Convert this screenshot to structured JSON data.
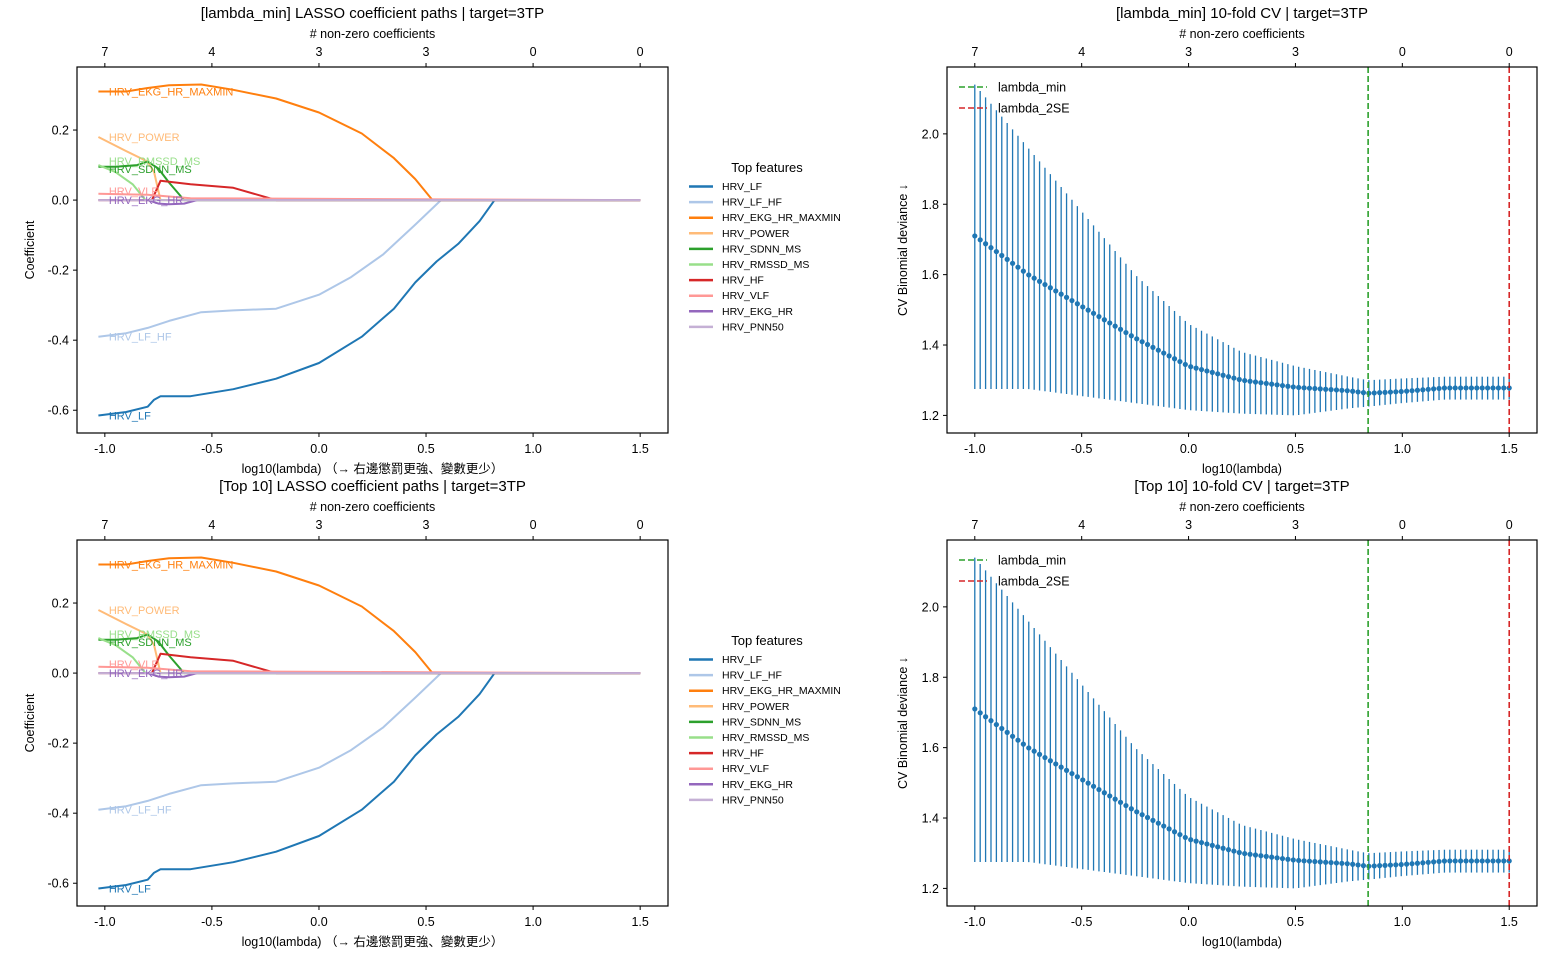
{
  "figure": {
    "panels": [
      {
        "id": "coef_min",
        "title": "[lambda_min] LASSO coefficient paths  |  target=3TP"
      },
      {
        "id": "cv_min",
        "title": "[lambda_min] 10-fold CV  |  target=3TP"
      },
      {
        "id": "coef_top",
        "title": "[Top 10] LASSO coefficient paths  |  target=3TP"
      },
      {
        "id": "cv_top",
        "title": "[Top 10] 10-fold CV  |  target=3TP"
      }
    ]
  },
  "chart_data": [
    {
      "type": "line",
      "title": "[lambda_min] LASSO coefficient paths  |  target=3TP",
      "xlabel": "log10(lambda)  （→ 右邊懲罰更強、變數更少）",
      "ylabel": "Coefficient",
      "top_xlabel": "# non-zero coefficients",
      "xlim": [
        -1.13,
        1.63
      ],
      "ylim": [
        -0.665,
        0.38
      ],
      "xticks": [
        -1.0,
        -0.5,
        0.0,
        0.5,
        1.0,
        1.5
      ],
      "xtick_labels": [
        "-1.0",
        "-0.5",
        "0.0",
        "0.5",
        "1.0",
        "1.5"
      ],
      "yticks": [
        -0.6,
        -0.4,
        -0.2,
        0.0,
        0.2
      ],
      "ytick_labels": [
        "-0.6",
        "-0.4",
        "-0.2",
        "0.0",
        "0.2"
      ],
      "top_xticks": [
        -1.0,
        -0.5,
        0.0,
        0.5,
        1.0,
        1.5
      ],
      "top_xtick_labels": [
        "7",
        "4",
        "3",
        "3",
        "0",
        "0"
      ],
      "legend": {
        "title": "Top features",
        "placement": "outside-right"
      },
      "series": [
        {
          "name": "HRV_LF",
          "color": "#1f77b4",
          "x": [
            -1.03,
            -0.9,
            -0.8,
            -0.77,
            -0.74,
            -0.6,
            -0.4,
            -0.2,
            0.0,
            0.2,
            0.35,
            0.45,
            0.55,
            0.65,
            0.75,
            0.82,
            1.5
          ],
          "y": [
            -0.615,
            -0.605,
            -0.59,
            -0.57,
            -0.56,
            -0.56,
            -0.54,
            -0.51,
            -0.465,
            -0.39,
            -0.31,
            -0.235,
            -0.175,
            -0.125,
            -0.06,
            0.0,
            0.0
          ]
        },
        {
          "name": "HRV_LF_HF",
          "color": "#aec7e8",
          "x": [
            -1.03,
            -0.9,
            -0.8,
            -0.7,
            -0.55,
            -0.4,
            -0.2,
            0.0,
            0.15,
            0.3,
            0.45,
            0.57,
            1.5
          ],
          "y": [
            -0.39,
            -0.38,
            -0.365,
            -0.345,
            -0.32,
            -0.315,
            -0.31,
            -0.27,
            -0.22,
            -0.155,
            -0.07,
            0.0,
            0.0
          ]
        },
        {
          "name": "HRV_EKG_HR_MAXMIN",
          "color": "#ff7f0e",
          "x": [
            -1.03,
            -0.9,
            -0.8,
            -0.7,
            -0.55,
            -0.4,
            -0.2,
            0.0,
            0.2,
            0.35,
            0.45,
            0.53,
            1.5
          ],
          "y": [
            0.31,
            0.31,
            0.32,
            0.328,
            0.33,
            0.315,
            0.29,
            0.25,
            0.19,
            0.12,
            0.06,
            0.0,
            0.0
          ]
        },
        {
          "name": "HRV_POWER",
          "color": "#ffbb78",
          "x": [
            -1.03,
            -0.9,
            -0.8,
            -0.77,
            -0.74,
            1.5
          ],
          "y": [
            0.18,
            0.14,
            0.11,
            0.08,
            0.0,
            0.0
          ]
        },
        {
          "name": "HRV_SDNN_MS",
          "color": "#2ca02c",
          "x": [
            -1.03,
            -0.95,
            -0.85,
            -0.8,
            -0.75,
            -0.7,
            -0.63,
            1.5
          ],
          "y": [
            0.095,
            0.095,
            0.1,
            0.11,
            0.09,
            0.05,
            0.0,
            0.0
          ]
        },
        {
          "name": "HRV_RMSSD_MS",
          "color": "#98df8a",
          "x": [
            -1.03,
            -0.95,
            -0.87,
            -0.81,
            1.5
          ],
          "y": [
            0.1,
            0.08,
            0.045,
            0.0,
            0.0
          ]
        },
        {
          "name": "HRV_HF",
          "color": "#d62728",
          "x": [
            -1.03,
            -0.78,
            -0.74,
            -0.6,
            -0.4,
            -0.2,
            1.5
          ],
          "y": [
            0.0,
            0.0,
            0.055,
            0.045,
            0.035,
            0.0,
            0.0
          ]
        },
        {
          "name": "HRV_VLF",
          "color": "#ff9896",
          "x": [
            -1.03,
            -0.8,
            -0.6,
            1.5
          ],
          "y": [
            0.018,
            0.015,
            0.005,
            0.0
          ]
        },
        {
          "name": "HRV_EKG_HR",
          "color": "#9467bd",
          "x": [
            -1.03,
            -0.8,
            -0.75,
            -0.7,
            -0.63,
            -0.57,
            1.5
          ],
          "y": [
            0.0,
            0.0,
            -0.01,
            -0.012,
            -0.01,
            0.0,
            0.0
          ]
        },
        {
          "name": "HRV_PNN50",
          "color": "#c5b0d5",
          "x": [
            -1.03,
            1.5
          ],
          "y": [
            0.0,
            0.0
          ]
        }
      ]
    },
    {
      "type": "scatter",
      "subtype": "errorbar",
      "title": "[lambda_min] 10-fold CV  |  target=3TP",
      "xlabel": "log10(lambda)",
      "ylabel": "CV Binomial deviance ↓",
      "top_xlabel": "# non-zero coefficients",
      "xlim": [
        -1.13,
        1.63
      ],
      "ylim": [
        1.15,
        2.19
      ],
      "xticks": [
        -1.0,
        -0.5,
        0.0,
        0.5,
        1.0,
        1.5
      ],
      "xtick_labels": [
        "-1.0",
        "-0.5",
        "0.0",
        "0.5",
        "1.0",
        "1.5"
      ],
      "yticks": [
        1.2,
        1.4,
        1.6,
        1.8,
        2.0
      ],
      "ytick_labels": [
        "1.2",
        "1.4",
        "1.6",
        "1.8",
        "2.0"
      ],
      "top_xticks": [
        -1.0,
        -0.5,
        0.0,
        0.5,
        1.0,
        1.5
      ],
      "top_xtick_labels": [
        "7",
        "4",
        "3",
        "3",
        "0",
        "0"
      ],
      "vlines": [
        {
          "name": "lambda_min",
          "x": 0.84,
          "color": "#2ca02c",
          "style": "dashed"
        },
        {
          "name": "lambda_2SE",
          "x": 1.5,
          "color": "#d62728",
          "style": "dashed"
        }
      ],
      "legend": {
        "placement": "top-left",
        "entries": [
          "lambda_min",
          "lambda_2SE"
        ]
      },
      "marker_color": "#1f77b4",
      "x_start": -1.0,
      "x_end": 1.5,
      "n_points": 100,
      "mean_keypoints": {
        "x": [
          -1.0,
          -0.75,
          -0.5,
          -0.25,
          0.0,
          0.25,
          0.5,
          0.75,
          0.84,
          1.0,
          1.2,
          1.5
        ],
        "y": [
          1.71,
          1.6,
          1.51,
          1.42,
          1.34,
          1.3,
          1.28,
          1.27,
          1.263,
          1.268,
          1.278,
          1.278
        ]
      },
      "upper_keypoints": {
        "x": [
          -1.0,
          -0.75,
          -0.5,
          -0.25,
          0.0,
          0.25,
          0.5,
          0.75,
          0.84,
          1.0,
          1.2,
          1.5
        ],
        "y": [
          2.14,
          1.96,
          1.78,
          1.6,
          1.46,
          1.38,
          1.34,
          1.31,
          1.3,
          1.305,
          1.31,
          1.31
        ]
      },
      "lower_keypoints": {
        "x": [
          -1.0,
          -0.75,
          -0.5,
          -0.25,
          0.0,
          0.25,
          0.5,
          0.75,
          0.84,
          1.0,
          1.2,
          1.5
        ],
        "y": [
          1.275,
          1.275,
          1.255,
          1.235,
          1.215,
          1.205,
          1.2,
          1.22,
          1.225,
          1.235,
          1.245,
          1.245
        ]
      }
    },
    {
      "type": "line",
      "title": "[Top 10] LASSO coefficient paths  |  target=3TP",
      "xlabel": "log10(lambda)  （→ 右邊懲罰更強、變數更少）",
      "ylabel": "Coefficient",
      "top_xlabel": "# non-zero coefficients",
      "same_as": "chart_data.0",
      "legend": {
        "title": "Top features",
        "placement": "outside-right"
      }
    },
    {
      "type": "scatter",
      "subtype": "errorbar",
      "title": "[Top 10] 10-fold CV  |  target=3TP",
      "xlabel": "log10(lambda)",
      "ylabel": "CV Binomial deviance ↓",
      "top_xlabel": "# non-zero coefficients",
      "same_as": "chart_data.1"
    }
  ],
  "path_labels": [
    {
      "text": "HRV_EKG_HR_MAXMIN",
      "series": "HRV_EKG_HR_MAXMIN"
    },
    {
      "text": "HRV_POWER",
      "series": "HRV_POWER"
    },
    {
      "text": "HRV_RMSSD_MS",
      "series": "HRV_RMSSD_MS"
    },
    {
      "text": "HRV_SDNN_MS",
      "series": "HRV_SDNN_MS"
    },
    {
      "text": "HRV_VLF",
      "series": "HRV_VLF"
    },
    {
      "text": "HRV_EKG_HR",
      "series": "HRV_EKG_HR"
    },
    {
      "text": "HRV_LF_HF",
      "series": "HRV_LF_HF"
    },
    {
      "text": "HRV_LF",
      "series": "HRV_LF"
    }
  ]
}
